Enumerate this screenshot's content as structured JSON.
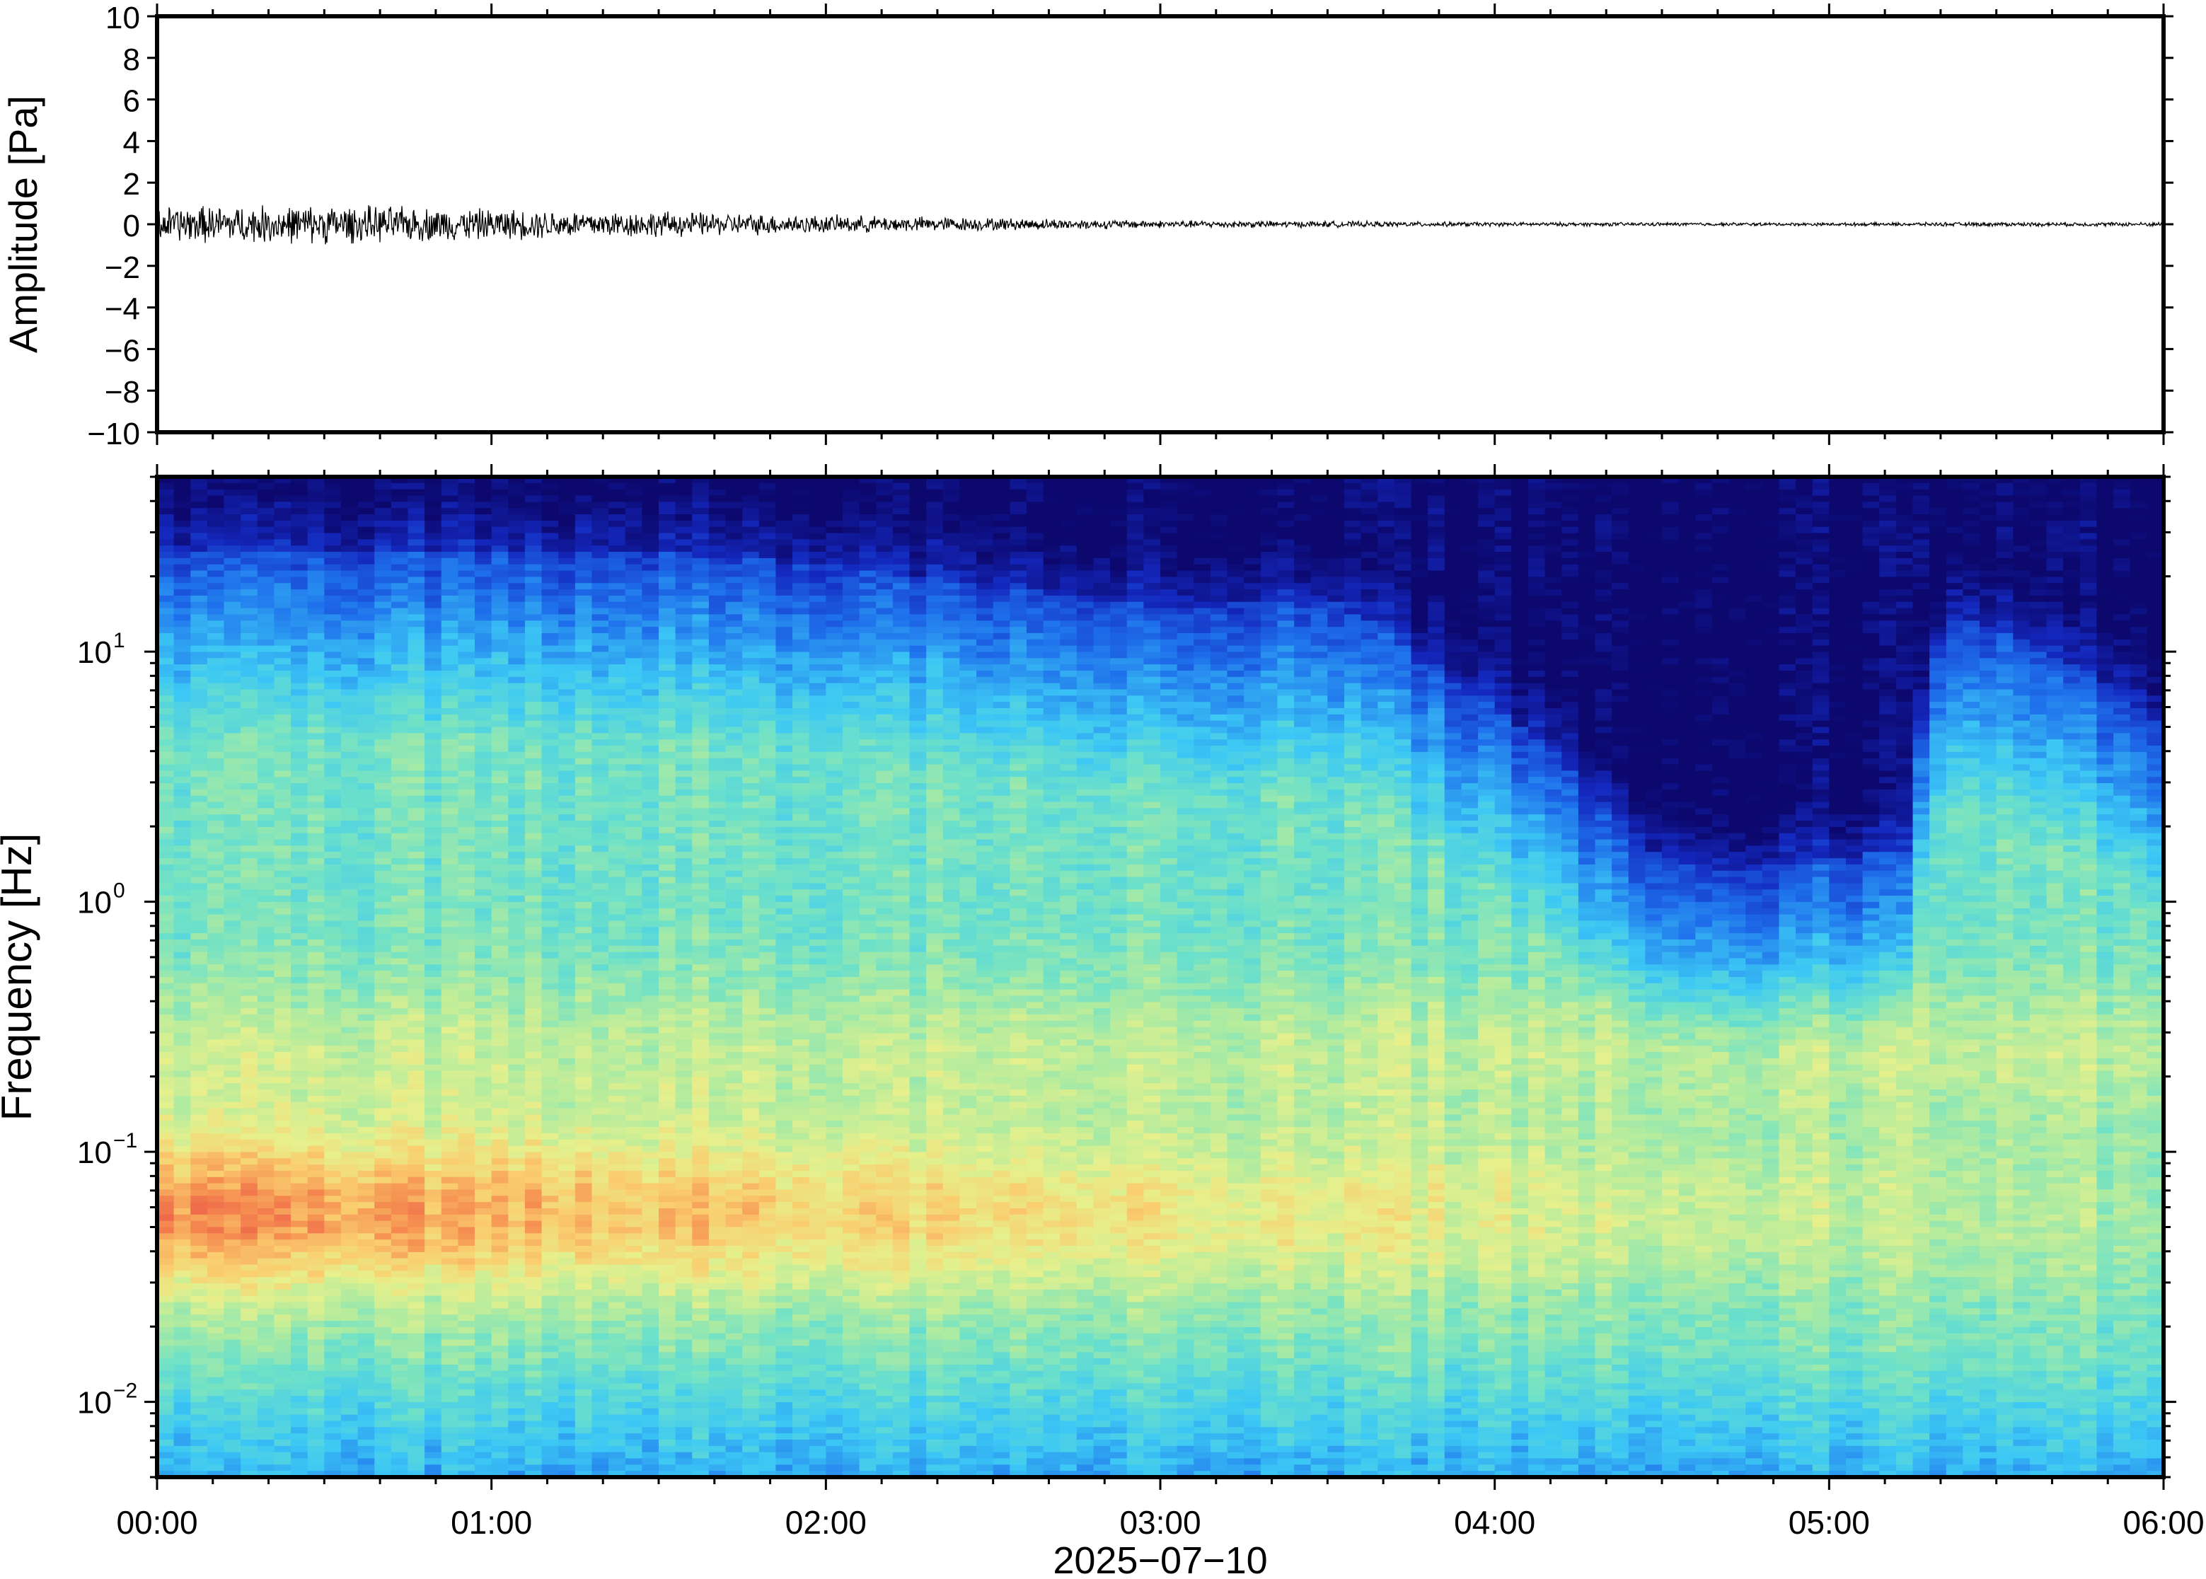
{
  "chart_data": [
    {
      "type": "line",
      "panel": "waveform",
      "ylabel": "Amplitude [Pa]",
      "ylim": [
        -10,
        10
      ],
      "yticks": [
        10,
        8,
        6,
        4,
        2,
        0,
        -2,
        -4,
        -6,
        -8,
        -10
      ],
      "ytick_labels": [
        "10",
        "8",
        "6",
        "4",
        "2",
        "0",
        "−2",
        "−4",
        "−6",
        "−8",
        "−10"
      ],
      "xlim": [
        "00:00",
        "06:00"
      ],
      "series": [
        {
          "x_hours": [
            0,
            0.5,
            1,
            1.5,
            2,
            2.5,
            3,
            3.5,
            4,
            4.5,
            5,
            5.5,
            6
          ],
          "envelope_amplitude": [
            0.7,
            0.75,
            0.6,
            0.5,
            0.35,
            0.25,
            0.15,
            0.12,
            0.08,
            0.07,
            0.06,
            0.08,
            0.08
          ],
          "color": "#000000"
        }
      ],
      "grid": false
    },
    {
      "type": "heatmap",
      "panel": "spectrogram",
      "ylabel": "Frequency [Hz]",
      "yscale": "log",
      "ylim": [
        0.005,
        50
      ],
      "yticks": [
        0.01,
        0.1,
        1,
        10
      ],
      "ytick_labels": [
        {
          "base": "10",
          "exp": "−2"
        },
        {
          "base": "10",
          "exp": "−1"
        },
        {
          "base": "10",
          "exp": "0"
        },
        {
          "base": "10",
          "exp": "1"
        }
      ],
      "xlabel": "2025−07−10",
      "xticks": [
        "00:00",
        "01:00",
        "02:00",
        "03:00",
        "04:00",
        "05:00",
        "06:00"
      ],
      "colormap": "jet",
      "upper_cutoff_hz": {
        "x_hours": [
          0,
          0.5,
          1,
          1.5,
          2,
          2.5,
          3,
          3.5,
          3.8,
          4.0,
          4.3,
          4.5,
          4.7,
          5.0,
          5.25,
          5.35,
          5.5,
          6
        ],
        "freq_hz": [
          25,
          25,
          25,
          25,
          22,
          18,
          15,
          16,
          9,
          6,
          2.5,
          1.5,
          1.3,
          1.5,
          1.6,
          14,
          12,
          5
        ]
      },
      "grid": false
    }
  ]
}
